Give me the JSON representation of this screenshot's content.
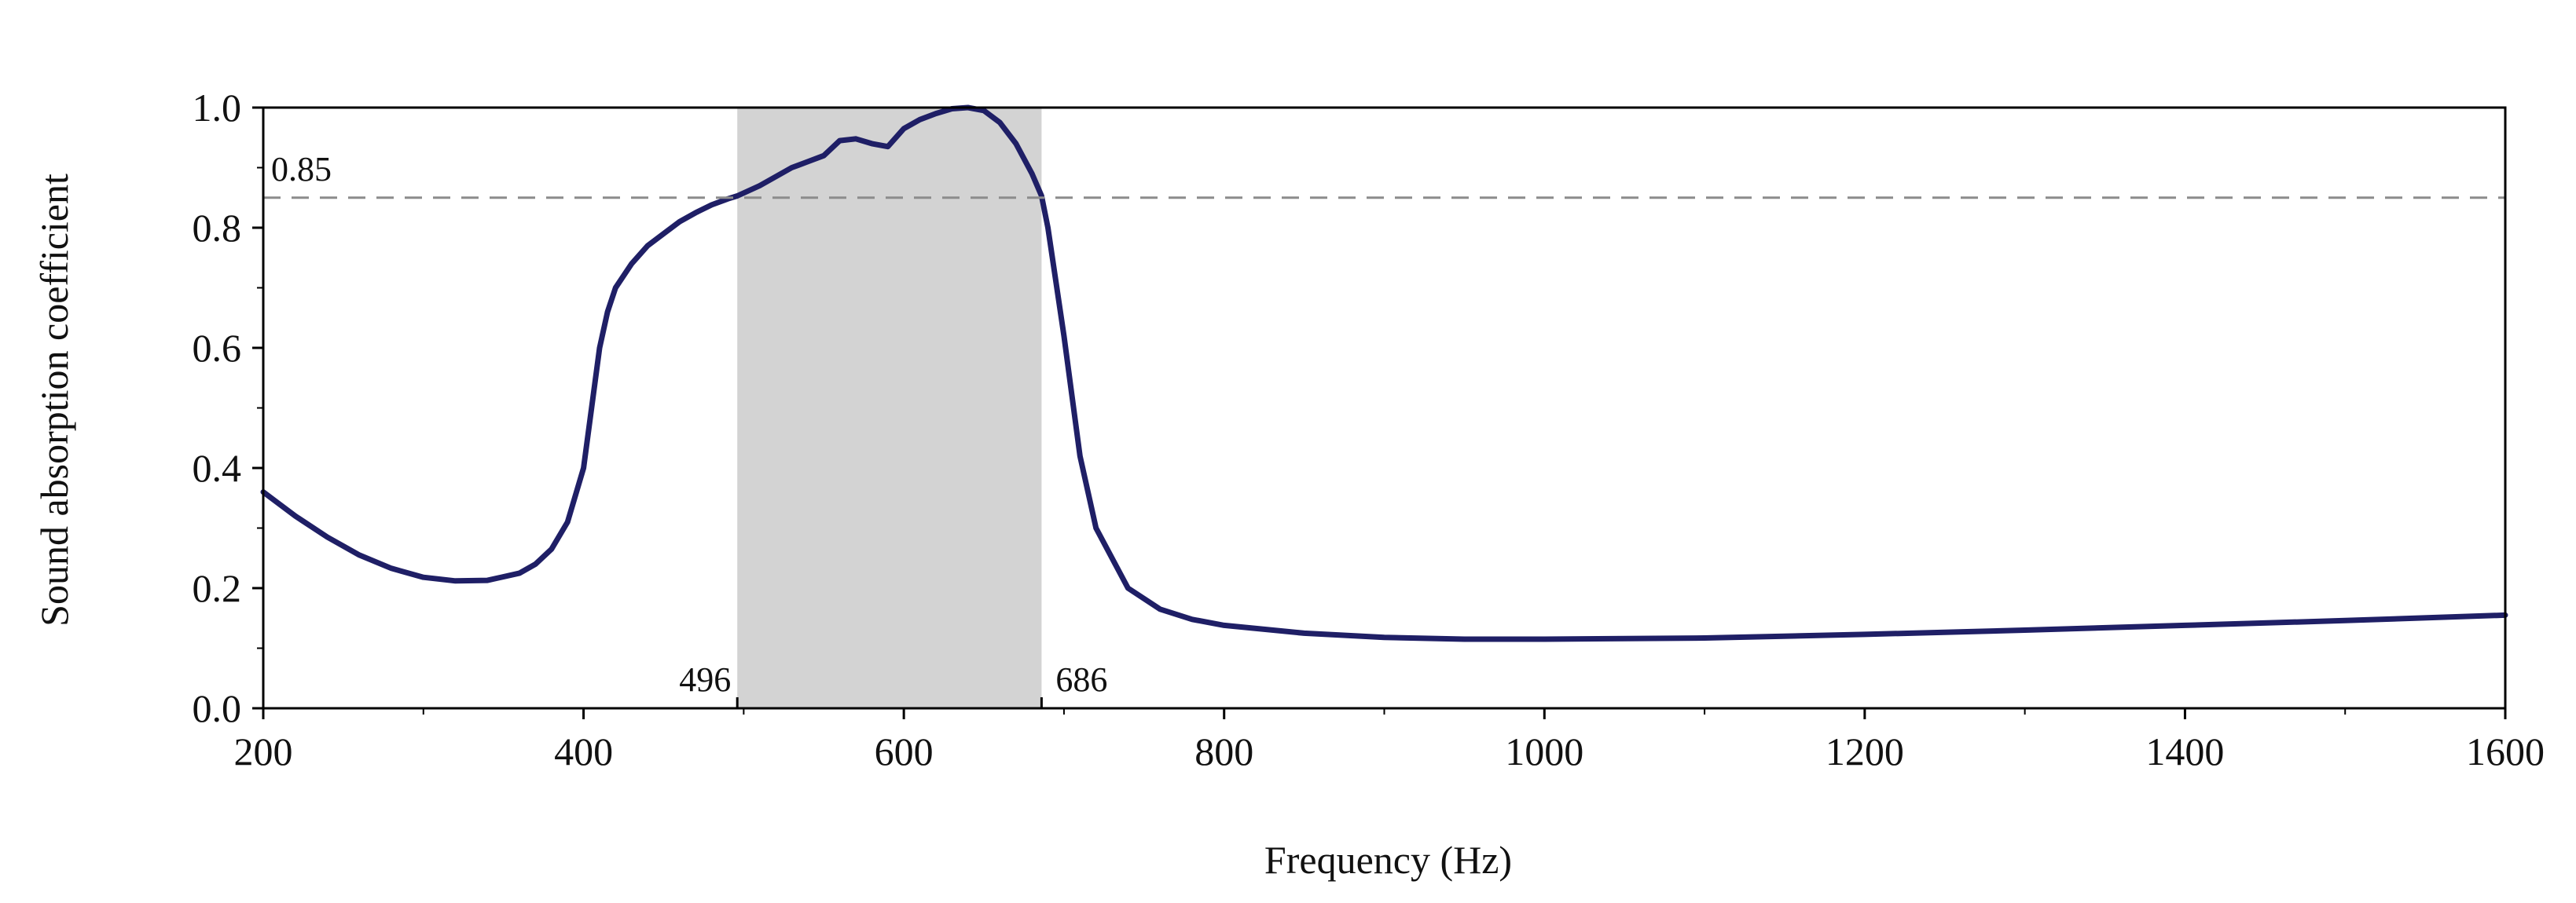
{
  "chart_data": {
    "type": "line",
    "title": "",
    "xlabel": "Frequency (Hz)",
    "ylabel": "Sound absorption coefficient",
    "xlim": [
      200,
      1600
    ],
    "ylim": [
      0.0,
      1.0
    ],
    "x_ticks": [
      "200",
      "400",
      "600",
      "800",
      "1000",
      "1200",
      "1400",
      "1600"
    ],
    "y_ticks": [
      "0.0",
      "0.2",
      "0.4",
      "0.6",
      "0.8",
      "1.0"
    ],
    "grid": false,
    "legend": "none",
    "colors": {
      "line": "#1f1f66",
      "band": "#d3d3d3",
      "threshold": "#8c8c8c",
      "axis": "#000000"
    },
    "threshold": {
      "value": 0.85,
      "label": "0.85"
    },
    "band": {
      "x_start": 496,
      "x_end": 686,
      "start_label": "496",
      "end_label": "686"
    },
    "series": [
      {
        "x": [
          200,
          220,
          240,
          260,
          280,
          300,
          320,
          340,
          360,
          370,
          380,
          390,
          400,
          405,
          410,
          415,
          420,
          430,
          440,
          450,
          460,
          470,
          480,
          490,
          496,
          510,
          520,
          530,
          540,
          550,
          560,
          570,
          580,
          590,
          600,
          610,
          620,
          630,
          640,
          650,
          660,
          670,
          680,
          686,
          690,
          700,
          710,
          720,
          740,
          760,
          780,
          800,
          850,
          900,
          950,
          1000,
          1100,
          1200,
          1300,
          1400,
          1500,
          1600
        ],
        "y": [
          0.36,
          0.32,
          0.285,
          0.255,
          0.233,
          0.218,
          0.212,
          0.213,
          0.225,
          0.24,
          0.265,
          0.31,
          0.4,
          0.5,
          0.6,
          0.66,
          0.7,
          0.74,
          0.77,
          0.79,
          0.81,
          0.825,
          0.838,
          0.848,
          0.853,
          0.87,
          0.885,
          0.9,
          0.91,
          0.92,
          0.945,
          0.948,
          0.94,
          0.935,
          0.965,
          0.98,
          0.99,
          0.998,
          1.0,
          0.995,
          0.975,
          0.94,
          0.89,
          0.853,
          0.8,
          0.62,
          0.42,
          0.3,
          0.2,
          0.165,
          0.148,
          0.138,
          0.125,
          0.118,
          0.115,
          0.115,
          0.117,
          0.123,
          0.13,
          0.138,
          0.146,
          0.155
        ]
      }
    ]
  }
}
